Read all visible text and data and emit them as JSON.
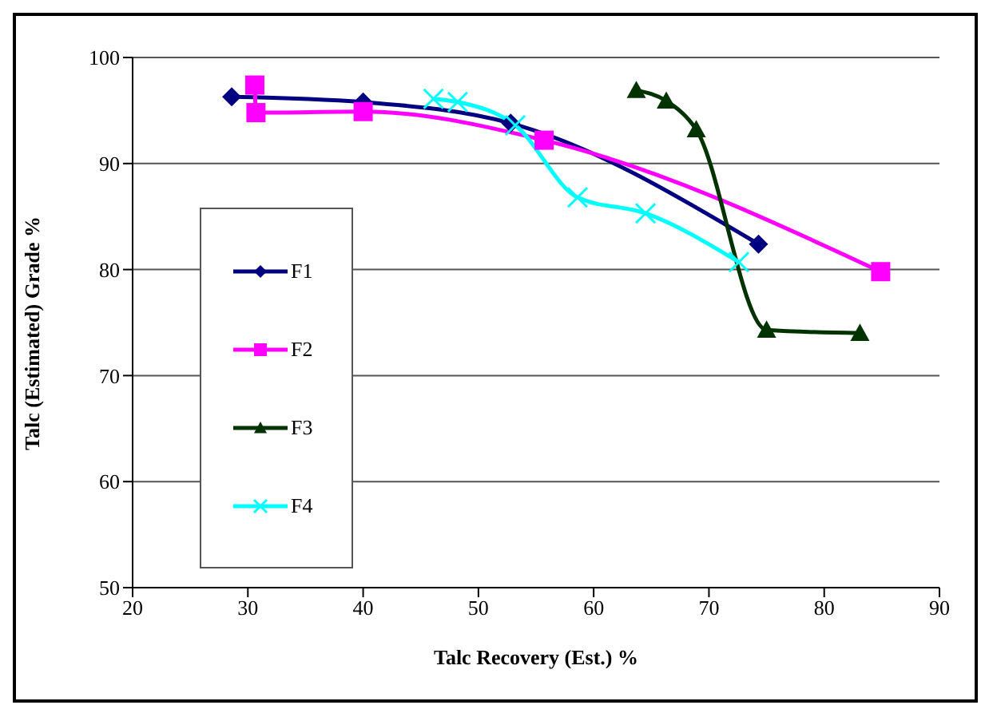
{
  "chart_data": {
    "type": "line",
    "xlabel": "Talc Recovery (Est.) %",
    "ylabel": "Talc (Estimated) Grade %",
    "xlim": [
      20,
      90
    ],
    "xticks": [
      20,
      30,
      40,
      50,
      60,
      70,
      80,
      90
    ],
    "ylim": [
      50,
      100
    ],
    "yticks": [
      50,
      60,
      70,
      80,
      90,
      100
    ],
    "grid": "y",
    "legend": "left",
    "series": [
      {
        "name": "F1",
        "color": "#000080",
        "marker": "diamond",
        "x": [
          28.6,
          40.0,
          52.8,
          74.3
        ],
        "values": [
          96.3,
          95.8,
          93.8,
          82.4
        ]
      },
      {
        "name": "F2",
        "color": "#ff00ff",
        "marker": "square",
        "x": [
          30.6,
          30.7,
          40.0,
          55.7,
          84.9
        ],
        "values": [
          97.4,
          94.8,
          94.9,
          92.2,
          79.8
        ]
      },
      {
        "name": "F3",
        "color": "#003300",
        "marker": "triangle",
        "x": [
          63.7,
          66.3,
          68.9,
          75.0,
          83.1
        ],
        "values": [
          96.9,
          95.9,
          93.2,
          74.3,
          74.0
        ]
      },
      {
        "name": "F4",
        "color": "#00ffff",
        "marker": "cross",
        "x": [
          46.1,
          48.2,
          53.2,
          58.6,
          64.5,
          72.6
        ],
        "values": [
          96.1,
          95.8,
          93.6,
          86.8,
          85.3,
          80.7
        ]
      }
    ]
  }
}
